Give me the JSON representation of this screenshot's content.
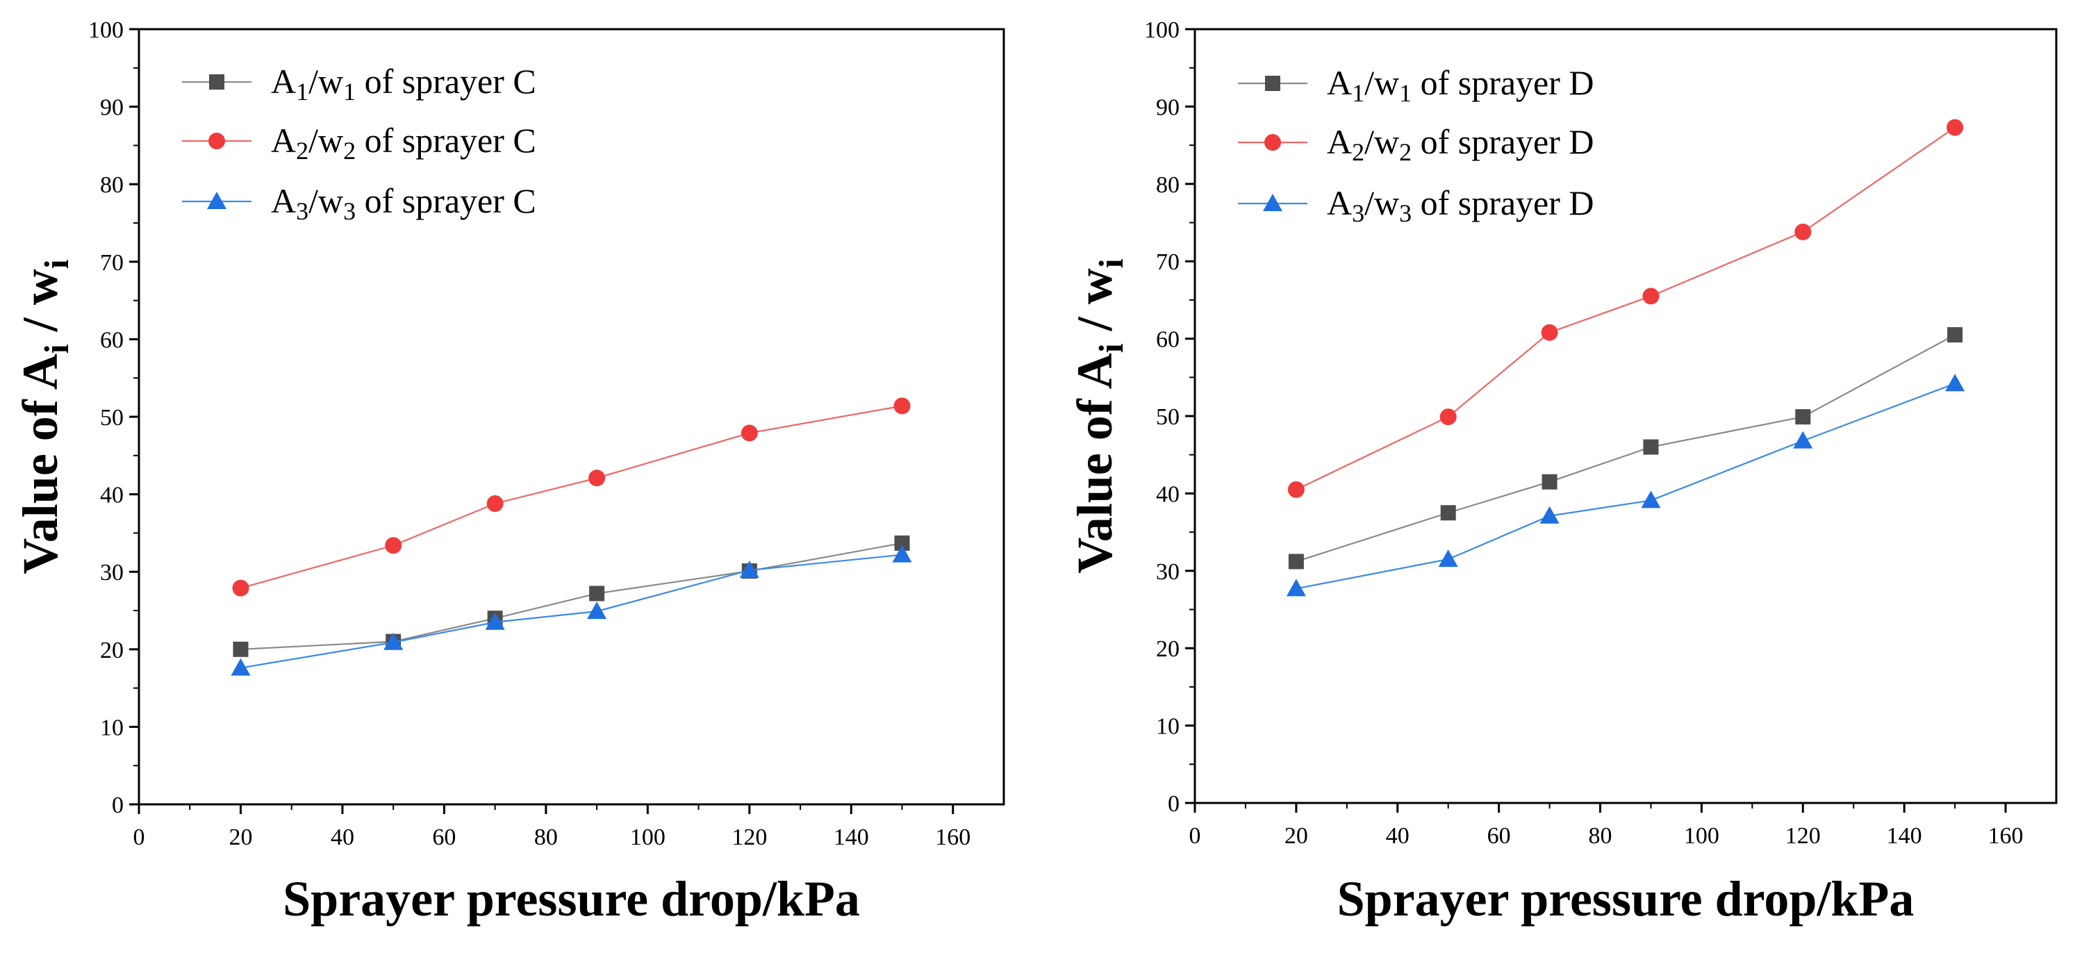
{
  "chart_data": [
    {
      "type": "line",
      "xlabel": "Sprayer pressure drop/kPa",
      "ylabel": {
        "prefix": "Value of ",
        "a": "A",
        "sub_a": "i",
        "mid": " / ",
        "w": "w",
        "sub_w": "i"
      },
      "xlim": [
        0,
        170
      ],
      "ylim": [
        0,
        100
      ],
      "x_ticks": [
        0,
        20,
        40,
        60,
        80,
        100,
        120,
        140,
        160
      ],
      "y_ticks": [
        0,
        10,
        20,
        30,
        40,
        50,
        60,
        70,
        80,
        90,
        100
      ],
      "x": [
        20,
        50,
        70,
        90,
        120,
        150
      ],
      "legend_position": "top-left",
      "series": [
        {
          "name": "A1/w1 of sprayer C",
          "label": {
            "a": "A",
            "i": "1",
            "w": "/w",
            "rest": " of sprayer C"
          },
          "marker": "square",
          "color": "#4d4d4d",
          "line_color": "#8a8a8a",
          "values": [
            20.0,
            21.0,
            24.0,
            27.2,
            30.1,
            33.7
          ]
        },
        {
          "name": "A2/w2 of sprayer C",
          "label": {
            "a": "A",
            "i": "2",
            "w": "/w",
            "rest": " of sprayer C"
          },
          "marker": "circle",
          "color": "#ef3b3b",
          "line_color": "#ef6666",
          "values": [
            27.9,
            33.4,
            38.8,
            42.1,
            47.9,
            51.4
          ]
        },
        {
          "name": "A3/w3 of sprayer C",
          "label": {
            "a": "A",
            "i": "3",
            "w": "/w",
            "rest": " of sprayer C"
          },
          "marker": "triangle",
          "color": "#1f6fe0",
          "line_color": "#3a8ae8",
          "values": [
            17.6,
            20.9,
            23.5,
            24.9,
            30.2,
            32.2
          ]
        }
      ]
    },
    {
      "type": "line",
      "xlabel": "Sprayer pressure drop/kPa",
      "ylabel": {
        "prefix": "Value of ",
        "a": "A",
        "sub_a": "i",
        "mid": " / ",
        "w": "w",
        "sub_w": "i"
      },
      "xlim": [
        0,
        170
      ],
      "ylim": [
        0,
        100
      ],
      "x_ticks": [
        0,
        20,
        40,
        60,
        80,
        100,
        120,
        140,
        160
      ],
      "y_ticks": [
        0,
        10,
        20,
        30,
        40,
        50,
        60,
        70,
        80,
        90,
        100
      ],
      "x": [
        20,
        50,
        70,
        90,
        120,
        150
      ],
      "legend_position": "top-left",
      "series": [
        {
          "name": "A1/w1 of sprayer D",
          "label": {
            "a": "A",
            "i": "1",
            "w": "/w",
            "rest": " of sprayer D"
          },
          "marker": "square",
          "color": "#4d4d4d",
          "line_color": "#8a8a8a",
          "values": [
            31.2,
            37.5,
            41.5,
            46.0,
            49.9,
            60.5
          ]
        },
        {
          "name": "A2/w2 of sprayer D",
          "label": {
            "a": "A",
            "i": "2",
            "w": "/w",
            "rest": " of sprayer D"
          },
          "marker": "circle",
          "color": "#ef3b3b",
          "line_color": "#ef6666",
          "values": [
            40.5,
            49.9,
            60.8,
            65.5,
            73.8,
            87.3
          ]
        },
        {
          "name": "A3/w3 of sprayer D",
          "label": {
            "a": "A",
            "i": "3",
            "w": "/w",
            "rest": " of sprayer D"
          },
          "marker": "triangle",
          "color": "#1f6fe0",
          "line_color": "#3a8ae8",
          "values": [
            27.7,
            31.5,
            37.1,
            39.1,
            46.8,
            54.2
          ]
        }
      ]
    }
  ]
}
